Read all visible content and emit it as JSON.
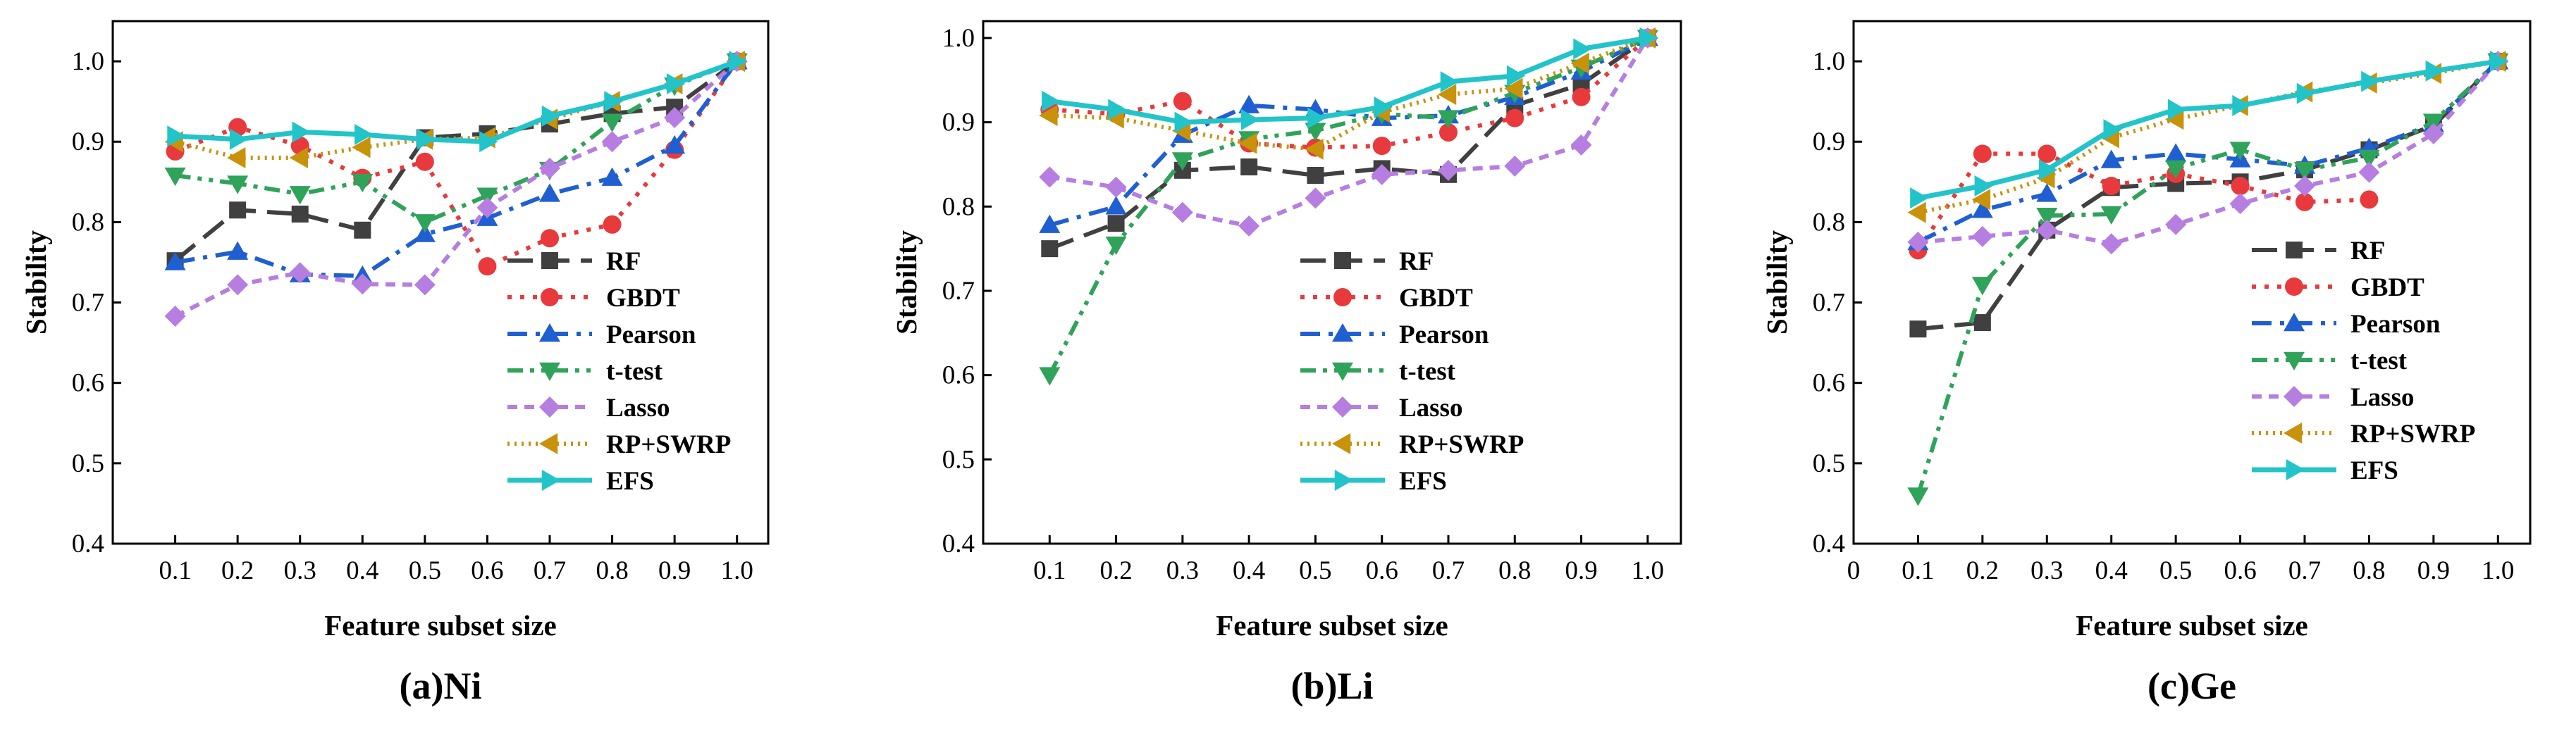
{
  "chart_data": [
    {
      "type": "line",
      "caption": "(a)Ni",
      "xlabel": "Feature subset size",
      "ylabel": "Stability",
      "x": [
        0.1,
        0.2,
        0.3,
        0.4,
        0.5,
        0.6,
        0.7,
        0.8,
        0.9,
        1.0
      ],
      "x_tick_labels": [
        "0.1",
        "0.2",
        "0.3",
        "0.4",
        "0.5",
        "0.6",
        "0.7",
        "0.8",
        "0.9",
        "1.0"
      ],
      "xlim": [
        0,
        1.05
      ],
      "ylim": [
        0.4,
        1.05
      ],
      "y_ticks": [
        0.4,
        0.5,
        0.6,
        0.7,
        0.8,
        0.9,
        1.0
      ],
      "y_tick_labels": [
        "0.4",
        "0.5",
        "0.6",
        "0.7",
        "0.8",
        "0.9",
        "1.0"
      ],
      "legend": "bottom-right",
      "series": [
        {
          "name": "RF",
          "values": [
            0.752,
            0.815,
            0.81,
            0.79,
            0.905,
            0.91,
            0.922,
            0.935,
            0.943,
            1.0
          ]
        },
        {
          "name": "GBDT",
          "values": [
            0.888,
            0.918,
            0.895,
            0.855,
            0.875,
            0.745,
            0.78,
            0.797,
            0.89,
            1.0
          ]
        },
        {
          "name": "Pearson",
          "values": [
            0.75,
            0.763,
            0.735,
            0.733,
            0.785,
            0.805,
            0.835,
            0.855,
            0.895,
            1.0
          ]
        },
        {
          "name": "t-test",
          "values": [
            0.858,
            0.848,
            0.835,
            0.85,
            0.8,
            0.833,
            0.865,
            0.925,
            0.97,
            1.0
          ]
        },
        {
          "name": "Lasso",
          "values": [
            0.683,
            0.722,
            0.737,
            0.723,
            0.722,
            0.818,
            0.867,
            0.9,
            0.93,
            1.0
          ]
        },
        {
          "name": "RP+SWRP",
          "values": [
            0.9,
            0.88,
            0.88,
            0.893,
            0.903,
            0.905,
            0.928,
            0.95,
            0.972,
            1.0
          ]
        },
        {
          "name": "EFS",
          "values": [
            0.907,
            0.903,
            0.912,
            0.909,
            0.903,
            0.9,
            0.932,
            0.95,
            0.972,
            1.0
          ]
        }
      ]
    },
    {
      "type": "line",
      "caption": "(b)Li",
      "xlabel": "Feature subset size",
      "ylabel": "Stability",
      "x": [
        0.1,
        0.2,
        0.3,
        0.4,
        0.5,
        0.6,
        0.7,
        0.8,
        0.9,
        1.0
      ],
      "x_tick_labels": [
        "0.1",
        "0.2",
        "0.3",
        "0.4",
        "0.5",
        "0.6",
        "0.7",
        "0.8",
        "0.9",
        "1.0"
      ],
      "xlim": [
        0,
        1.05
      ],
      "ylim": [
        0.4,
        1.02
      ],
      "y_ticks": [
        0.4,
        0.5,
        0.6,
        0.7,
        0.8,
        0.9,
        1.0
      ],
      "y_tick_labels": [
        "0.4",
        "0.5",
        "0.6",
        "0.7",
        "0.8",
        "0.9",
        "1.0"
      ],
      "legend": "bottom-right",
      "series": [
        {
          "name": "RF",
          "values": [
            0.75,
            0.78,
            0.843,
            0.847,
            0.837,
            0.845,
            0.838,
            0.92,
            0.945,
            1.0
          ]
        },
        {
          "name": "GBDT",
          "values": [
            0.915,
            0.91,
            0.925,
            0.875,
            0.87,
            0.872,
            0.888,
            0.905,
            0.93,
            1.0
          ]
        },
        {
          "name": "Pearson",
          "values": [
            0.778,
            0.8,
            0.885,
            0.92,
            0.915,
            0.905,
            0.908,
            0.93,
            0.96,
            1.0
          ]
        },
        {
          "name": "t-test",
          "values": [
            0.6,
            0.755,
            0.855,
            0.88,
            0.89,
            0.91,
            0.905,
            0.935,
            0.965,
            1.0
          ]
        },
        {
          "name": "Lasso",
          "values": [
            0.835,
            0.823,
            0.793,
            0.777,
            0.81,
            0.838,
            0.843,
            0.848,
            0.873,
            1.0
          ]
        },
        {
          "name": "RP+SWRP",
          "values": [
            0.908,
            0.905,
            0.89,
            0.875,
            0.868,
            0.912,
            0.933,
            0.94,
            0.97,
            1.0
          ]
        },
        {
          "name": "EFS",
          "values": [
            0.925,
            0.915,
            0.9,
            0.903,
            0.905,
            0.918,
            0.948,
            0.955,
            0.987,
            1.0
          ]
        }
      ]
    },
    {
      "type": "line",
      "caption": "(c)Ge",
      "xlabel": "Feature subset size",
      "ylabel": "Stability",
      "x": [
        0.1,
        0.2,
        0.3,
        0.4,
        0.5,
        0.6,
        0.7,
        0.8,
        0.9,
        1.0
      ],
      "x_tick_labels": [
        "0",
        "0.1",
        "0.2",
        "0.3",
        "0.4",
        "0.5",
        "0.6",
        "0.7",
        "0.8",
        "0.9",
        "1.0"
      ],
      "x_tick_values": [
        0,
        0.1,
        0.2,
        0.3,
        0.4,
        0.5,
        0.6,
        0.7,
        0.8,
        0.9,
        1.0
      ],
      "xlim": [
        0,
        1.05
      ],
      "ylim": [
        0.4,
        1.05
      ],
      "y_ticks": [
        0.4,
        0.5,
        0.6,
        0.7,
        0.8,
        0.9,
        1.0
      ],
      "y_tick_labels": [
        "0.4",
        "0.5",
        "0.6",
        "0.7",
        "0.8",
        "0.9",
        "1.0"
      ],
      "legend": "bottom-right",
      "series": [
        {
          "name": "RF",
          "values": [
            0.667,
            0.675,
            0.79,
            0.843,
            0.848,
            0.85,
            0.865,
            0.89,
            0.92,
            1.0
          ]
        },
        {
          "name": "GBDT",
          "values": [
            0.765,
            0.885,
            0.885,
            0.845,
            0.86,
            0.845,
            0.825,
            0.828,
            null,
            null
          ]
        },
        {
          "name": "Pearson",
          "values": [
            0.775,
            0.815,
            0.835,
            0.877,
            0.885,
            0.878,
            0.87,
            0.892,
            0.922,
            1.0
          ]
        },
        {
          "name": "t-test",
          "values": [
            0.46,
            0.722,
            0.808,
            0.81,
            0.867,
            0.89,
            0.865,
            0.88,
            0.925,
            1.0
          ]
        },
        {
          "name": "Lasso",
          "values": [
            0.775,
            0.782,
            0.79,
            0.773,
            0.797,
            0.823,
            0.845,
            0.862,
            0.91,
            1.0
          ]
        },
        {
          "name": "RP+SWRP",
          "values": [
            0.812,
            0.828,
            0.855,
            0.905,
            0.928,
            0.945,
            0.962,
            0.973,
            0.985,
            1.0
          ]
        },
        {
          "name": "EFS",
          "values": [
            0.83,
            0.845,
            0.865,
            0.915,
            0.94,
            0.945,
            0.96,
            0.975,
            0.988,
            1.0
          ]
        }
      ]
    }
  ],
  "series_styles": [
    {
      "name": "RF",
      "color": "#404040",
      "dash": "36 16",
      "marker": "square"
    },
    {
      "name": "GBDT",
      "color": "#e8393c",
      "dash": "6 12",
      "marker": "circle"
    },
    {
      "name": "Pearson",
      "color": "#1f5fd1",
      "dash": "28 12 6 12",
      "marker": "triangle-up"
    },
    {
      "name": "t-test",
      "color": "#2fa35a",
      "dash": "22 10 6 10 6 10",
      "marker": "triangle-down"
    },
    {
      "name": "Lasso",
      "color": "#b57ee0",
      "dash": "14 10",
      "marker": "diamond"
    },
    {
      "name": "RP+SWRP",
      "color": "#c8920a",
      "dash": "3 7",
      "marker": "triangle-left"
    },
    {
      "name": "EFS",
      "color": "#22c4c9",
      "dash": "",
      "marker": "triangle-right"
    }
  ]
}
